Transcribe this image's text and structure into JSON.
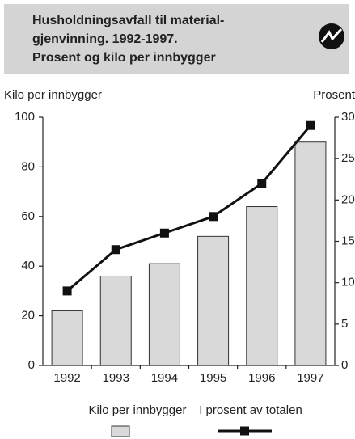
{
  "chart_data": {
    "type": "combo",
    "title": [
      "Husholdningsavfall til material-",
      "gjenvinning. 1992-1997.",
      "Prosent og kilo per innbygger"
    ],
    "ylabel": "Kilo per innbygger",
    "y2label": "Prosent",
    "categories": [
      "1992",
      "1993",
      "1994",
      "1995",
      "1996",
      "1997"
    ],
    "series": [
      {
        "name": "Kilo per innbygger",
        "type": "bar",
        "color": "#d9d9d9",
        "values": [
          22,
          36,
          41,
          52,
          64,
          90
        ]
      },
      {
        "name": "I prosent av totalen",
        "type": "line",
        "axis": "y2",
        "color": "#111111",
        "values": [
          9,
          14,
          16,
          18,
          22,
          29
        ]
      }
    ],
    "ylim": [
      0,
      100
    ],
    "yticks": [
      0,
      20,
      40,
      60,
      80,
      100
    ],
    "y2lim": [
      0,
      30
    ],
    "y2ticks": [
      0,
      5,
      10,
      15,
      20,
      25,
      30
    ],
    "legend": "bottom"
  }
}
